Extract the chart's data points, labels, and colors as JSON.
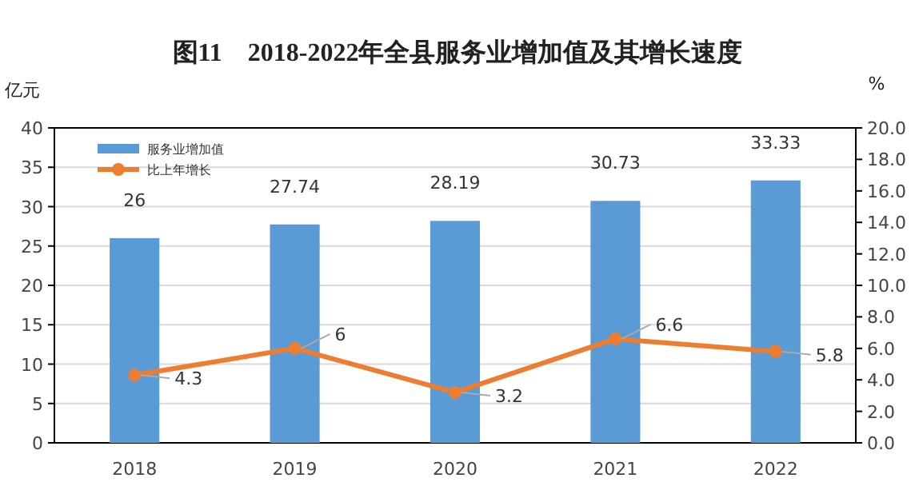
{
  "chart_data": {
    "type": "bar",
    "title": "图11　2018-2022年全县服务业增加值及其增长速度",
    "ylabel": "亿元",
    "y2label": "%",
    "categories": [
      "2018",
      "2019",
      "2020",
      "2021",
      "2022"
    ],
    "series": [
      {
        "name": "服务业增加值",
        "color": "#5b9bd5",
        "values": [
          26,
          27.74,
          28.19,
          30.73,
          33.33
        ]
      },
      {
        "name": "比上年增长",
        "type": "line",
        "axis": "y2",
        "color": "#ed7d31",
        "marker": "circle",
        "values": [
          4.3,
          6,
          3.2,
          6.6,
          5.8
        ]
      }
    ],
    "ylim": [
      0,
      40
    ],
    "yticks": [
      0,
      5,
      10,
      15,
      20,
      25,
      30,
      35,
      40
    ],
    "y2lim": [
      0,
      20
    ],
    "y2ticks": [
      {
        "value": 0,
        "label": "0.0"
      },
      {
        "value": 2,
        "label": "2.0"
      },
      {
        "value": 4,
        "label": "4.0"
      },
      {
        "value": 6,
        "label": "6.0"
      },
      {
        "value": 8,
        "label": "8.0"
      },
      {
        "value": 10,
        "label": "10.0"
      },
      {
        "value": 12,
        "label": "12.0"
      },
      {
        "value": 14,
        "label": "14.0"
      },
      {
        "value": 16,
        "label": "16.0"
      },
      {
        "value": 18,
        "label": "18.0"
      },
      {
        "value": 20,
        "label": "20.0"
      }
    ],
    "grid": "y",
    "legend": "top left",
    "data_labels": true
  }
}
